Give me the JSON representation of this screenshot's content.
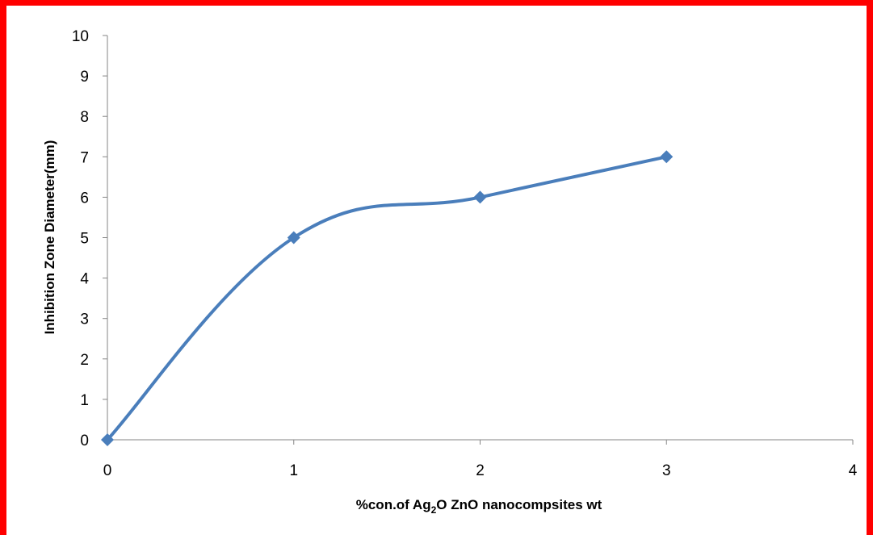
{
  "chart_data": {
    "type": "line",
    "x": [
      0,
      1,
      2,
      3
    ],
    "series": [
      {
        "values": [
          0,
          5,
          6,
          7
        ],
        "color": "#4a7ebb",
        "marker": "diamond",
        "smooth": true
      }
    ],
    "xlabel": {
      "prefix": "%con.of Ag",
      "subscript": "2",
      "suffix": "O ZnO nanocompsites wt"
    },
    "ylabel": "Inhibition Zone Diameter(mm)",
    "xlim": [
      0,
      4
    ],
    "ylim": [
      0,
      10
    ],
    "xticks": [
      0,
      1,
      2,
      3,
      4
    ],
    "yticks": [
      0,
      1,
      2,
      3,
      4,
      5,
      6,
      7,
      8,
      9,
      10
    ],
    "grid": false,
    "legend": "none"
  },
  "colors": {
    "frame": "#ff0000",
    "axis": "#868686",
    "series": "#4a7ebb"
  }
}
